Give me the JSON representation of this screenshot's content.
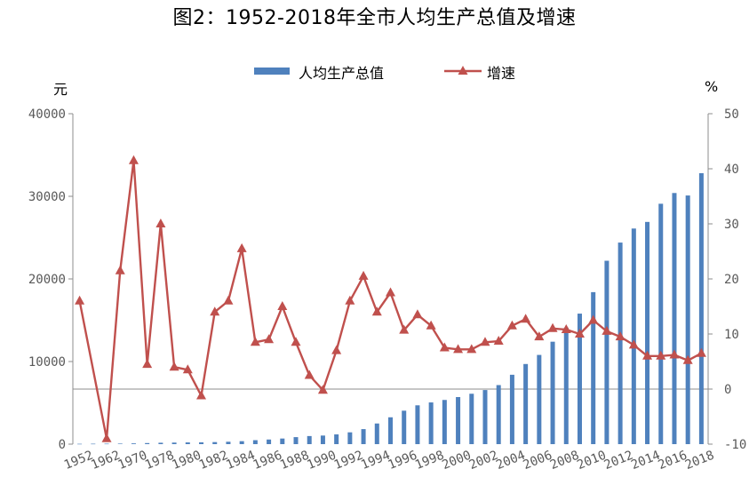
{
  "chart_data": {
    "type": "bar+line",
    "title": "图2：1952-2018年全市人均生产总值及增速",
    "legend_position": "top",
    "y_left": {
      "unit": "元",
      "min": 0,
      "max": 40000,
      "ticks": [
        "0",
        "10000",
        "20000",
        "30000",
        "40000"
      ]
    },
    "y_right": {
      "unit": "%",
      "min": -10,
      "max": 50,
      "ticks": [
        "-10",
        "0",
        "10",
        "20",
        "30",
        "40",
        "50"
      ]
    },
    "grid": false,
    "x_tick_labels": [
      "1952",
      "1962",
      "1970",
      "1978",
      "1980",
      "1982",
      "1984",
      "1986",
      "1988",
      "1990",
      "1992",
      "1994",
      "1996",
      "1998",
      "2000",
      "2002",
      "2004",
      "2006",
      "2008",
      "2010",
      "2012",
      "2014",
      "2016",
      "2018"
    ],
    "series": [
      {
        "name": "人均生产总值",
        "type": "bar",
        "color": "#4F81BD",
        "points": [
          {
            "year": 1952,
            "value": 40
          },
          {
            "year": 1957,
            "value": 50
          },
          {
            "year": 1962,
            "value": 55
          },
          {
            "year": 1965,
            "value": 65
          },
          {
            "year": 1970,
            "value": 90
          },
          {
            "year": 1975,
            "value": 130
          },
          {
            "year": 1978,
            "value": 170
          },
          {
            "year": 1979,
            "value": 190
          },
          {
            "year": 1980,
            "value": 210
          },
          {
            "year": 1981,
            "value": 220
          },
          {
            "year": 1982,
            "value": 250
          },
          {
            "year": 1983,
            "value": 290
          },
          {
            "year": 1984,
            "value": 360
          },
          {
            "year": 1985,
            "value": 480
          },
          {
            "year": 1986,
            "value": 560
          },
          {
            "year": 1987,
            "value": 680
          },
          {
            "year": 1988,
            "value": 850
          },
          {
            "year": 1989,
            "value": 980
          },
          {
            "year": 1990,
            "value": 1040
          },
          {
            "year": 1991,
            "value": 1180
          },
          {
            "year": 1992,
            "value": 1430
          },
          {
            "year": 1993,
            "value": 1820
          },
          {
            "year": 1994,
            "value": 2500
          },
          {
            "year": 1995,
            "value": 3250
          },
          {
            "year": 1996,
            "value": 4050
          },
          {
            "year": 1997,
            "value": 4700
          },
          {
            "year": 1998,
            "value": 5050
          },
          {
            "year": 1999,
            "value": 5350
          },
          {
            "year": 2000,
            "value": 5700
          },
          {
            "year": 2001,
            "value": 6100
          },
          {
            "year": 2002,
            "value": 6550
          },
          {
            "year": 2003,
            "value": 7150
          },
          {
            "year": 2004,
            "value": 8400
          },
          {
            "year": 2005,
            "value": 9700
          },
          {
            "year": 2006,
            "value": 10800
          },
          {
            "year": 2007,
            "value": 12400
          },
          {
            "year": 2008,
            "value": 14100
          },
          {
            "year": 2009,
            "value": 15800
          },
          {
            "year": 2010,
            "value": 18400
          },
          {
            "year": 2011,
            "value": 22200
          },
          {
            "year": 2012,
            "value": 24400
          },
          {
            "year": 2013,
            "value": 26100
          },
          {
            "year": 2014,
            "value": 26900
          },
          {
            "year": 2015,
            "value": 29100
          },
          {
            "year": 2016,
            "value": 30400
          },
          {
            "year": 2017,
            "value": 30100
          },
          {
            "year": 2018,
            "value": 32800
          }
        ]
      },
      {
        "name": "增速",
        "type": "line",
        "marker": "triangle",
        "color": "#C0504D",
        "points": [
          {
            "year": 1952,
            "value": 16
          },
          {
            "year": 1962,
            "value": -9
          },
          {
            "year": 1965,
            "value": 21.5
          },
          {
            "year": 1970,
            "value": 41.5
          },
          {
            "year": 1975,
            "value": 4.5
          },
          {
            "year": 1978,
            "value": 30
          },
          {
            "year": 1979,
            "value": 4
          },
          {
            "year": 1980,
            "value": 3.5
          },
          {
            "year": 1981,
            "value": -1.2
          },
          {
            "year": 1982,
            "value": 14
          },
          {
            "year": 1983,
            "value": 16
          },
          {
            "year": 1984,
            "value": 25.5
          },
          {
            "year": 1985,
            "value": 8.5
          },
          {
            "year": 1986,
            "value": 9
          },
          {
            "year": 1987,
            "value": 15
          },
          {
            "year": 1988,
            "value": 8.5
          },
          {
            "year": 1989,
            "value": 2.5
          },
          {
            "year": 1990,
            "value": -0.2
          },
          {
            "year": 1991,
            "value": 7
          },
          {
            "year": 1992,
            "value": 16
          },
          {
            "year": 1993,
            "value": 20.5
          },
          {
            "year": 1994,
            "value": 14
          },
          {
            "year": 1995,
            "value": 17.5
          },
          {
            "year": 1996,
            "value": 10.7
          },
          {
            "year": 1997,
            "value": 13.5
          },
          {
            "year": 1998,
            "value": 11.5
          },
          {
            "year": 1999,
            "value": 7.5
          },
          {
            "year": 2000,
            "value": 7.2
          },
          {
            "year": 2001,
            "value": 7.2
          },
          {
            "year": 2002,
            "value": 8.5
          },
          {
            "year": 2003,
            "value": 8.7
          },
          {
            "year": 2004,
            "value": 11.5
          },
          {
            "year": 2005,
            "value": 12.7
          },
          {
            "year": 2006,
            "value": 9.5
          },
          {
            "year": 2007,
            "value": 11
          },
          {
            "year": 2008,
            "value": 10.8
          },
          {
            "year": 2009,
            "value": 10
          },
          {
            "year": 2010,
            "value": 12.5
          },
          {
            "year": 2011,
            "value": 10.5
          },
          {
            "year": 2012,
            "value": 9.5
          },
          {
            "year": 2013,
            "value": 8
          },
          {
            "year": 2014,
            "value": 6
          },
          {
            "year": 2015,
            "value": 6
          },
          {
            "year": 2016,
            "value": 6.2
          },
          {
            "year": 2017,
            "value": 5.2
          },
          {
            "year": 2018,
            "value": 6.5
          }
        ]
      }
    ]
  }
}
